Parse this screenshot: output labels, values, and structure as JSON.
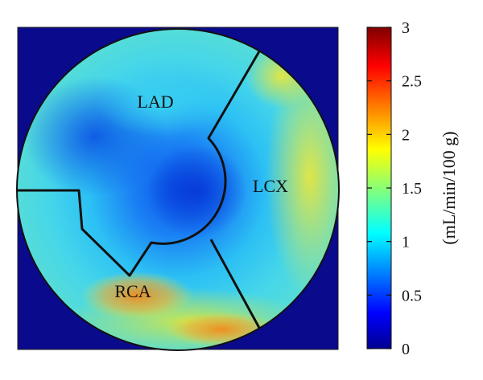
{
  "chart_data": {
    "type": "heatmap",
    "subtype": "polar-bullseye",
    "regions": [
      {
        "label": "LAD"
      },
      {
        "label": "LCX"
      },
      {
        "label": "RCA"
      }
    ],
    "colorbar": {
      "label": "(mL/min/100 g)",
      "range": [
        0,
        3
      ],
      "ticks": [
        "0",
        "0.5",
        "1",
        "1.5",
        "2",
        "2.5",
        "3"
      ],
      "tick_values": [
        0,
        0.5,
        1,
        1.5,
        2,
        2.5,
        3
      ],
      "colormap": "jet"
    },
    "background_color": "#0a0a8c",
    "title": "",
    "xlabel": "",
    "ylabel": ""
  }
}
